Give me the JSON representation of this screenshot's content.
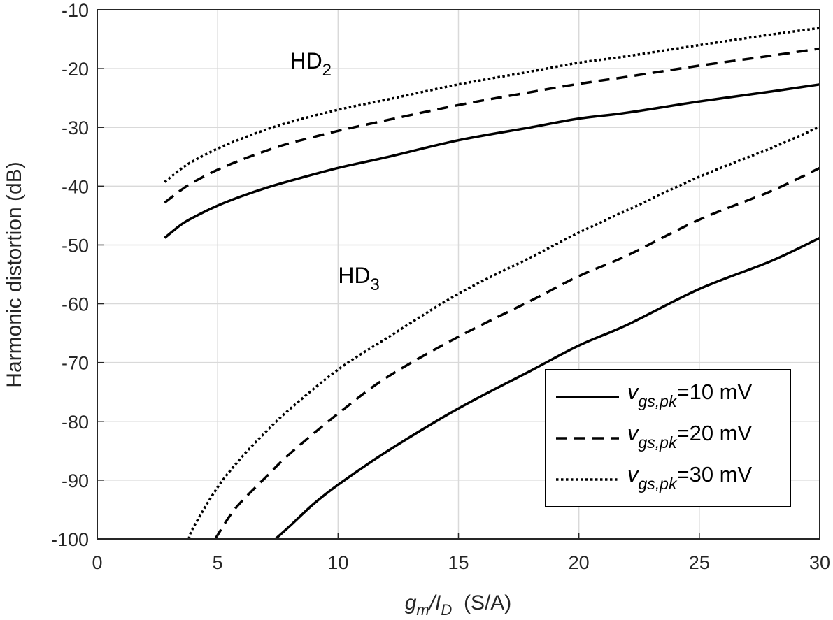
{
  "chart_data": {
    "type": "line",
    "title": "",
    "xlabel": {
      "main": "g",
      "sub1": "m",
      "slash": "/I",
      "sub2": "D",
      "unit": "  (S/A)"
    },
    "ylabel": "Harmonic distortion (dB)",
    "xlim": [
      0,
      30
    ],
    "ylim": [
      -100,
      -10
    ],
    "xticks": [
      "0",
      "5",
      "10",
      "15",
      "20",
      "25",
      "30"
    ],
    "yticks": [
      "-10",
      "-20",
      "-30",
      "-40",
      "-50",
      "-60",
      "-70",
      "-80",
      "-90",
      "-100"
    ],
    "grid": true,
    "legend_position": "bottom-right",
    "annotations": [
      {
        "main": "HD",
        "sub": "2",
        "x": 8,
        "y": -20
      },
      {
        "main": "HD",
        "sub": "3",
        "x": 10,
        "y": -56.5
      }
    ],
    "legend": [
      {
        "pre": "v",
        "sub": "gs,pk",
        "post": "=10 mV",
        "style": "solid"
      },
      {
        "pre": "v",
        "sub": "gs,pk",
        "post": "=20 mV",
        "style": "dashed"
      },
      {
        "pre": "v",
        "sub": "gs,pk",
        "post": "=30 mV",
        "style": "dotted"
      }
    ],
    "series": [
      {
        "group": "HD2",
        "style": "solid",
        "x": [
          2.8,
          3.5,
          4,
          5,
          6,
          7,
          8,
          10,
          12,
          15,
          18,
          20,
          22,
          25,
          28,
          30
        ],
        "y": [
          -48.8,
          -46.5,
          -45.3,
          -43.3,
          -41.7,
          -40.3,
          -39.1,
          -36.9,
          -35.1,
          -32.2,
          -30,
          -28.5,
          -27.5,
          -25.6,
          -23.9,
          -22.7
        ]
      },
      {
        "group": "HD2",
        "style": "dashed",
        "x": [
          2.8,
          3.5,
          4,
          5,
          6,
          7,
          8,
          10,
          12,
          15,
          18,
          20,
          22,
          25,
          28,
          30
        ],
        "y": [
          -42.8,
          -40.6,
          -39.3,
          -37.2,
          -35.5,
          -34,
          -32.7,
          -30.6,
          -28.8,
          -26.2,
          -24,
          -22.6,
          -21.4,
          -19.5,
          -17.8,
          -16.6
        ]
      },
      {
        "group": "HD2",
        "style": "dotted",
        "x": [
          2.8,
          3.5,
          4,
          5,
          6,
          7,
          8,
          10,
          12,
          15,
          18,
          20,
          22,
          25,
          28,
          30
        ],
        "y": [
          -39.3,
          -37,
          -35.7,
          -33.6,
          -31.9,
          -30.4,
          -29.1,
          -27,
          -25.3,
          -22.7,
          -20.5,
          -19,
          -17.9,
          -16,
          -14.2,
          -13.1
        ]
      },
      {
        "group": "HD3",
        "style": "solid",
        "x": [
          7.4,
          8,
          9,
          10,
          12,
          15,
          18,
          20,
          22,
          25,
          28,
          30
        ],
        "y": [
          -100,
          -97.8,
          -94,
          -90.8,
          -85.2,
          -77.8,
          -71.4,
          -67.1,
          -63.6,
          -57.5,
          -52.7,
          -48.8
        ]
      },
      {
        "group": "HD3",
        "style": "dashed",
        "x": [
          4.9,
          5.5,
          6,
          7,
          8,
          10,
          12,
          15,
          18,
          20,
          22,
          25,
          28,
          30
        ],
        "y": [
          -100,
          -96.1,
          -93.6,
          -89.5,
          -85.5,
          -78.7,
          -72.6,
          -65.6,
          -59.5,
          -55.3,
          -51.8,
          -45.7,
          -40.8,
          -36.9
        ]
      },
      {
        "group": "HD3",
        "style": "dotted",
        "x": [
          3.8,
          4,
          5,
          6,
          7,
          8,
          10,
          12,
          15,
          18,
          20,
          22,
          25,
          28,
          30
        ],
        "y": [
          -100,
          -98,
          -91.2,
          -86.1,
          -81.8,
          -77.9,
          -71.2,
          -65.9,
          -58.3,
          -52.1,
          -47.9,
          -44.1,
          -38.4,
          -33.5,
          -29.9
        ]
      }
    ]
  }
}
